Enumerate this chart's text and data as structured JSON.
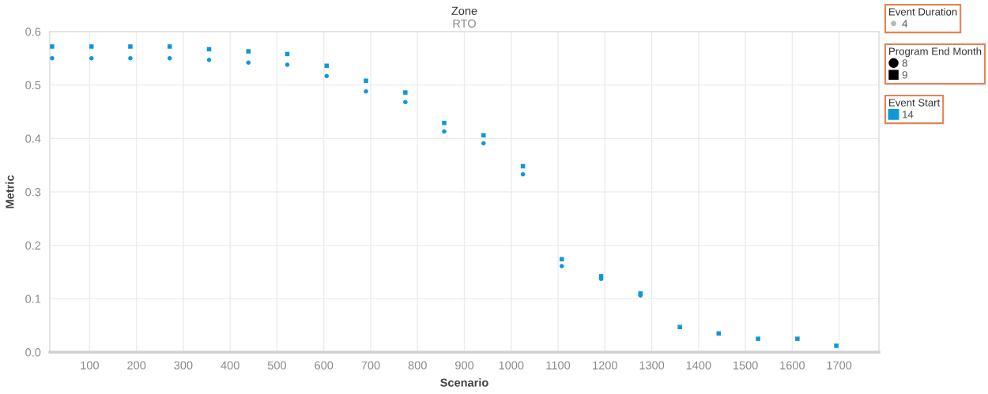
{
  "chart_data": {
    "type": "scatter",
    "title": "Zone",
    "subtitle": "RTO",
    "xlabel": "Scenario",
    "ylabel": "Metric",
    "x": [
      20,
      104,
      187,
      271,
      355,
      439,
      522,
      606,
      690,
      774,
      857,
      941,
      1025,
      1108,
      1192,
      1276,
      1360,
      1443,
      1527,
      1611,
      1694
    ],
    "series": [
      {
        "name": "8",
        "color": "#0f98d8",
        "marker": "circle",
        "values": [
          0.55,
          0.55,
          0.55,
          0.55,
          0.547,
          0.542,
          0.538,
          0.517,
          0.488,
          0.468,
          0.413,
          0.391,
          0.333,
          0.161,
          0.137,
          0.106,
          null,
          null,
          null,
          null,
          null
        ]
      },
      {
        "name": "9",
        "color": "#0f98d8",
        "marker": "square",
        "values": [
          0.572,
          0.572,
          0.572,
          0.572,
          0.567,
          0.563,
          0.558,
          0.536,
          0.508,
          0.486,
          0.429,
          0.406,
          0.348,
          0.174,
          0.142,
          0.11,
          0.047,
          0.035,
          0.025,
          0.025,
          0.012
        ]
      }
    ],
    "legend_title": "Program End Month",
    "legend": "top right",
    "annotations": [
      "Event Duration",
      "4",
      "Event Start",
      "14"
    ],
    "xlim": [
      15,
      1785
    ],
    "xticks": [
      100,
      200,
      300,
      400,
      500,
      600,
      700,
      800,
      900,
      1000,
      1100,
      1200,
      1300,
      1400,
      1500,
      1600,
      1700
    ],
    "ylim": [
      0,
      0.6
    ],
    "yticks": [
      {
        "value": 0,
        "label": "0.0"
      },
      0.1,
      0.2,
      0.3,
      0.4,
      0.5,
      0.6
    ],
    "grid": true
  }
}
